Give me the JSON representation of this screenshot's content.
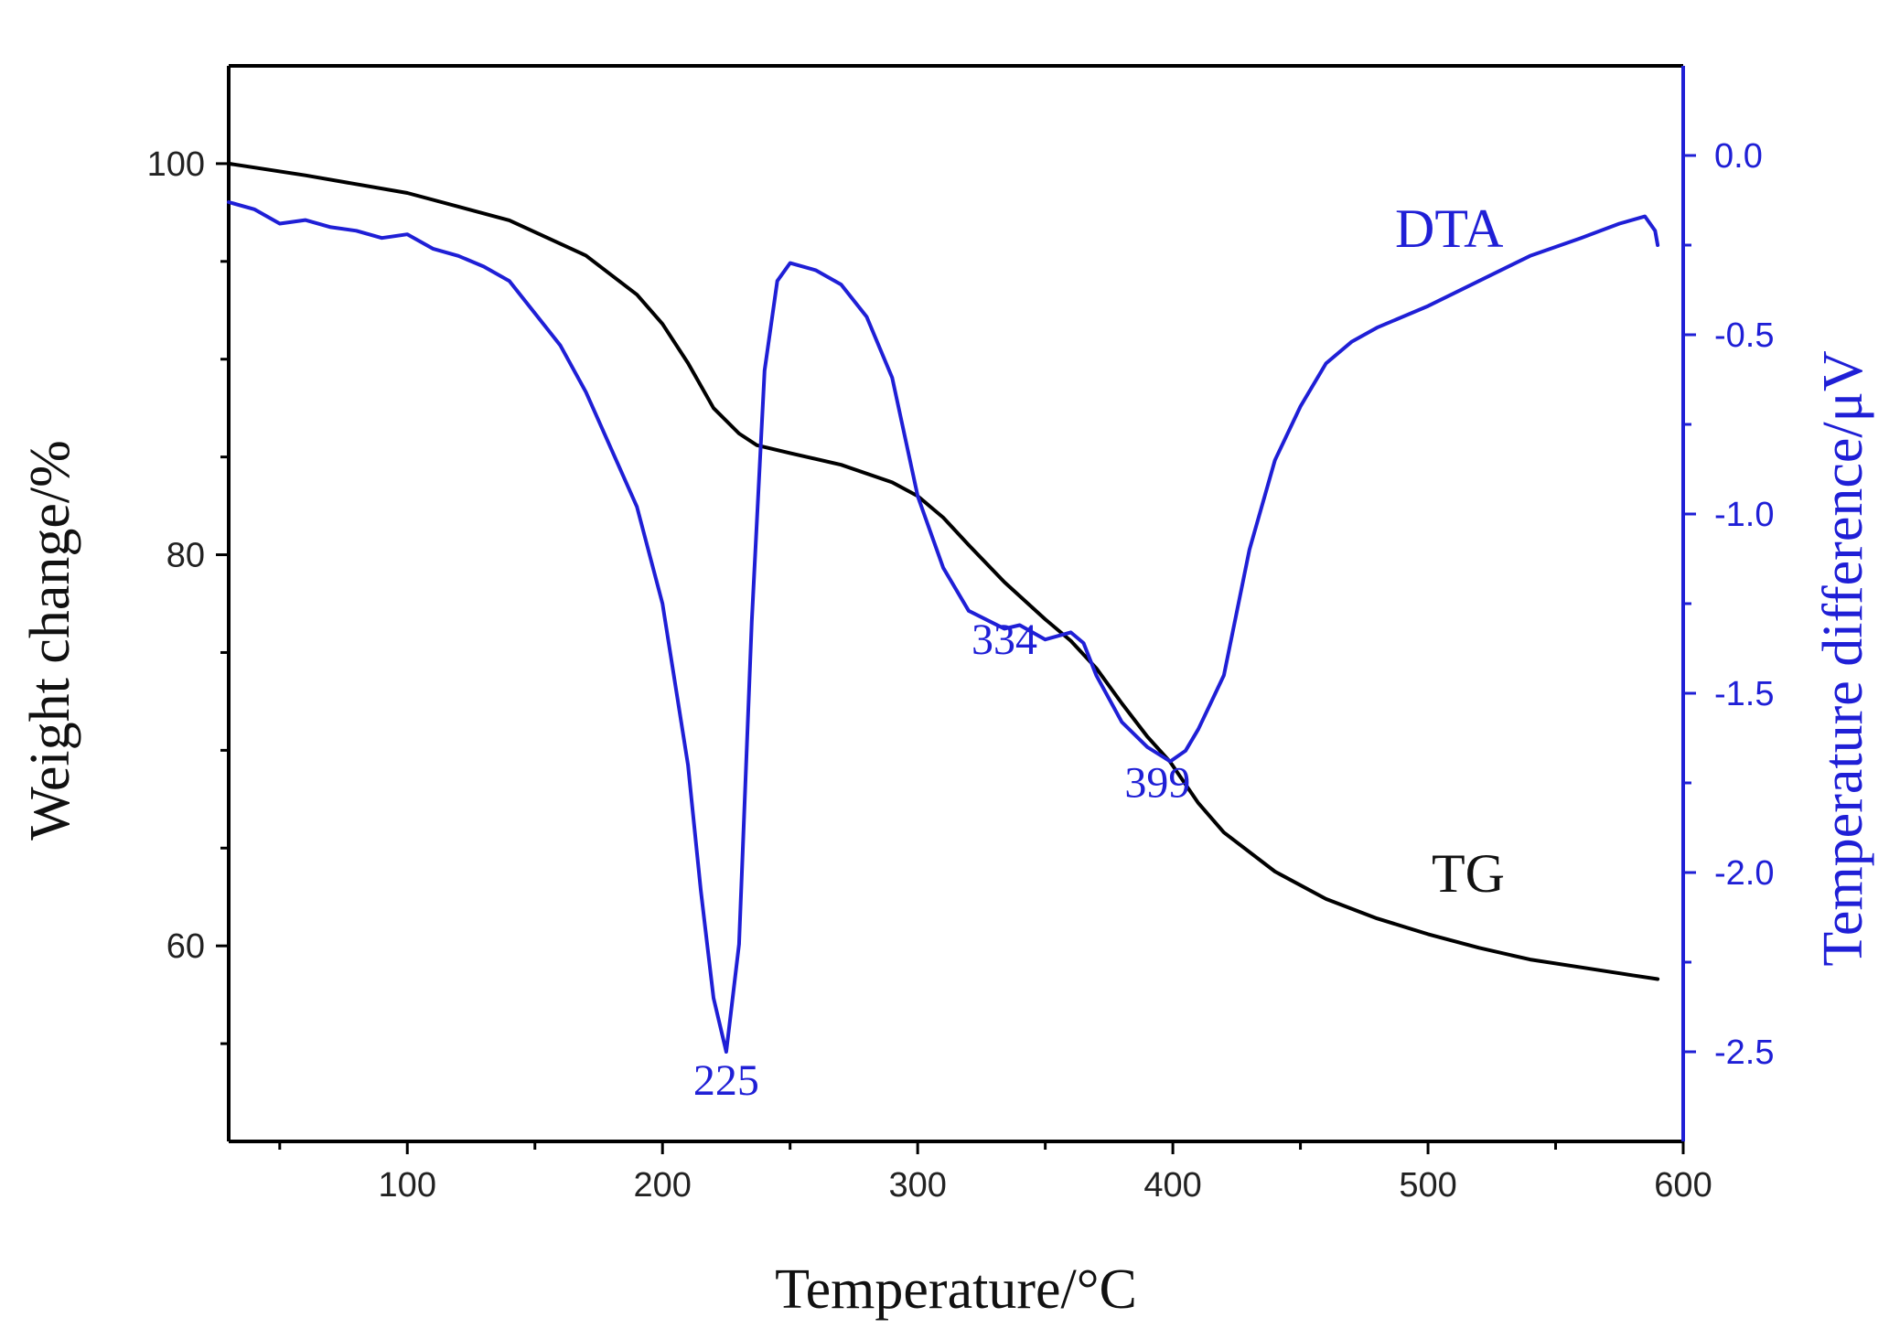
{
  "colors": {
    "tg": "#000000",
    "dta": "#1f1fd6",
    "axis_left": "#000000",
    "axis_right": "#1f1fd6"
  },
  "chart_data": {
    "type": "line",
    "title": "",
    "xlabel": "Temperature/°C",
    "ylabel_left": "Weight change/%",
    "ylabel_right": "Temperature difference/μV",
    "xlim": [
      30,
      600
    ],
    "ylim_left": [
      50,
      105
    ],
    "ylim_right": [
      -2.75,
      0.25
    ],
    "grid": false,
    "x_ticks": [
      100,
      200,
      300,
      400,
      500,
      600
    ],
    "x_tick_labels": [
      "100",
      "200",
      "300",
      "400",
      "500",
      "600"
    ],
    "y_left_ticks": [
      100,
      80,
      60
    ],
    "y_left_tick_labels": [
      "100",
      "80",
      "60"
    ],
    "y_right_ticks": [
      0.0,
      -0.5,
      -1.0,
      -1.5,
      -2.0,
      -2.5
    ],
    "y_right_tick_labels": [
      "0.0",
      "-0.5",
      "-1.0",
      "-1.5",
      "-2.0",
      "-2.5"
    ],
    "series": [
      {
        "name": "TG",
        "label": "TG",
        "axis": "left",
        "x": [
          30,
          60,
          100,
          140,
          170,
          190,
          200,
          210,
          220,
          230,
          237,
          250,
          270,
          290,
          300,
          310,
          320,
          334,
          350,
          360,
          370,
          380,
          390,
          399,
          410,
          420,
          440,
          460,
          480,
          500,
          520,
          540,
          560,
          580,
          590
        ],
        "y": [
          100,
          99.4,
          98.5,
          97.1,
          95.3,
          93.3,
          91.8,
          89.8,
          87.5,
          86.2,
          85.6,
          85.2,
          84.6,
          83.7,
          83.0,
          81.9,
          80.5,
          78.6,
          76.7,
          75.6,
          74.2,
          72.4,
          70.7,
          69.4,
          67.3,
          65.8,
          63.8,
          62.4,
          61.4,
          60.6,
          59.9,
          59.3,
          58.9,
          58.5,
          58.3
        ]
      },
      {
        "name": "DTA",
        "label": "DTA",
        "axis": "right",
        "x": [
          30,
          40,
          50,
          60,
          70,
          80,
          90,
          100,
          110,
          120,
          130,
          140,
          150,
          160,
          170,
          180,
          190,
          200,
          210,
          215,
          220,
          225,
          230,
          235,
          240,
          245,
          250,
          260,
          270,
          280,
          290,
          300,
          305,
          310,
          320,
          334,
          340,
          350,
          360,
          365,
          370,
          380,
          390,
          399,
          405,
          410,
          420,
          430,
          440,
          450,
          460,
          470,
          480,
          500,
          520,
          540,
          560,
          575,
          585,
          589,
          590
        ],
        "y": [
          -0.13,
          -0.15,
          -0.19,
          -0.18,
          -0.2,
          -0.21,
          -0.23,
          -0.22,
          -0.26,
          -0.28,
          -0.31,
          -0.35,
          -0.44,
          -0.53,
          -0.66,
          -0.82,
          -0.98,
          -1.25,
          -1.7,
          -2.05,
          -2.35,
          -2.5,
          -2.2,
          -1.3,
          -0.6,
          -0.35,
          -0.3,
          -0.32,
          -0.36,
          -0.45,
          -0.62,
          -0.95,
          -1.05,
          -1.15,
          -1.27,
          -1.32,
          -1.31,
          -1.35,
          -1.33,
          -1.36,
          -1.45,
          -1.58,
          -1.65,
          -1.69,
          -1.66,
          -1.6,
          -1.45,
          -1.1,
          -0.85,
          -0.7,
          -0.58,
          -0.52,
          -0.48,
          -0.42,
          -0.35,
          -0.28,
          -0.23,
          -0.19,
          -0.17,
          -0.21,
          -0.25
        ]
      }
    ],
    "annotations": [
      {
        "text": "225",
        "x": 225,
        "y": -2.62,
        "axis": "right"
      },
      {
        "text": "334",
        "x": 334,
        "y": -1.39,
        "axis": "right"
      },
      {
        "text": "399",
        "x": 394,
        "y": -1.79,
        "axis": "right"
      }
    ]
  }
}
